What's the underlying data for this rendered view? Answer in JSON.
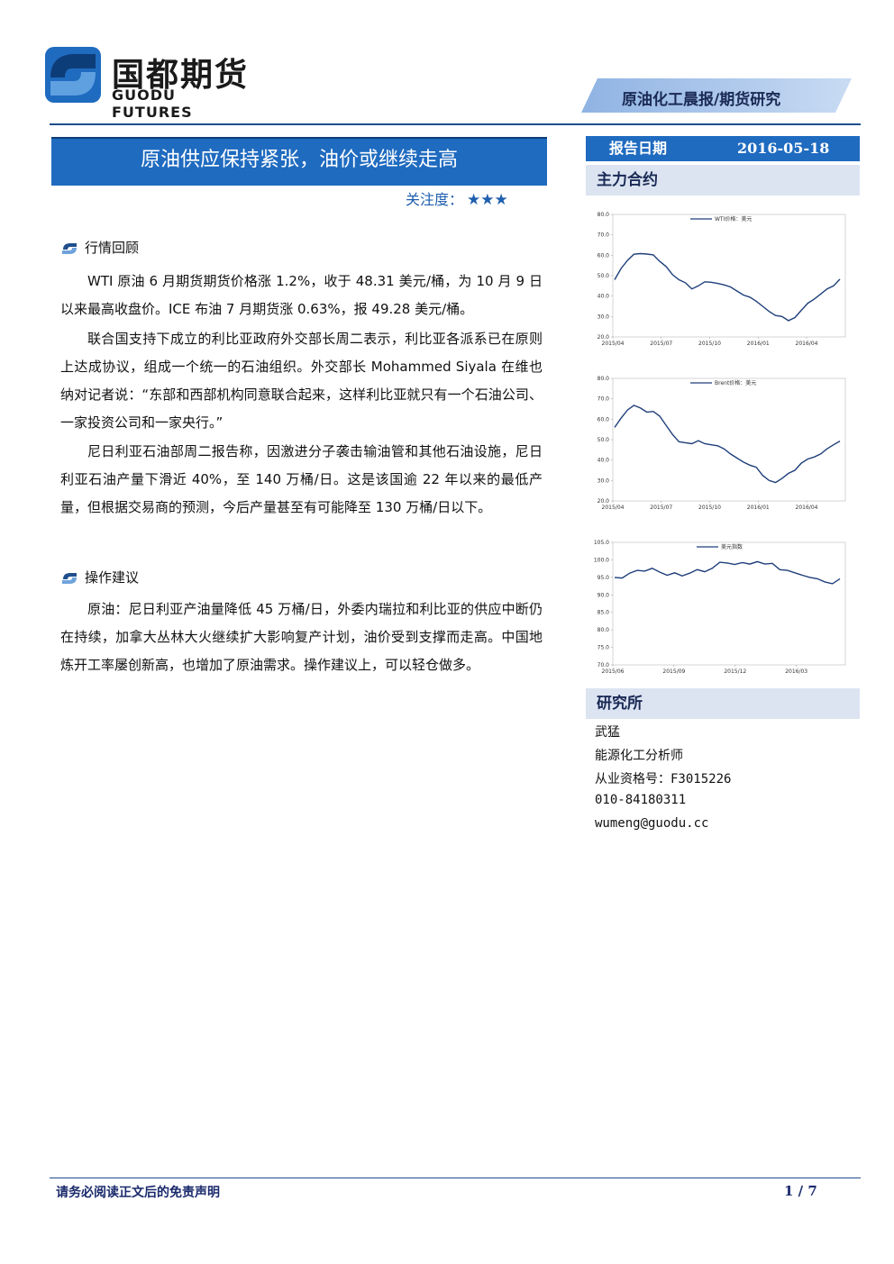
{
  "header": {
    "logo_cn": "国都期货",
    "logo_en": "GUODU FUTURES",
    "report_type": "原油化工晨报/期货研究"
  },
  "title": "原油供应保持紧张，油价或继续走高",
  "focus": {
    "label": "关注度：",
    "stars": 3
  },
  "sections": [
    {
      "heading": "行情回顾",
      "paragraphs": [
        "WTI 原油 6 月期货期货价格涨 1.2%，收于 48.31 美元/桶，为 10 月 9 日以来最高收盘价。ICE 布油 7 月期货涨 0.63%，报 49.28 美元/桶。",
        "联合国支持下成立的利比亚政府外交部长周二表示，利比亚各派系已在原则上达成协议，组成一个统一的石油组织。外交部长 Mohammed Siyala 在维也纳对记者说：“东部和西部机构同意联合起来，这样利比亚就只有一个石油公司、一家投资公司和一家央行。”",
        "尼日利亚石油部周二报告称，因激进分子袭击输油管和其他石油设施，尼日利亚石油产量下滑近 40%，至 140 万桶/日。这是该国逾 22 年以来的最低产量，但根据交易商的预测，今后产量甚至有可能降至 130 万桶/日以下。"
      ]
    },
    {
      "heading": "操作建议",
      "paragraphs": [
        "原油：尼日利亚产油量降低 45 万桶/日，外委内瑞拉和利比亚的供应中断仍在持续，加拿大丛林大火继续扩大影响复产计划，油价受到支撑而走高。中国地炼开工率屡创新高，也增加了原油需求。操作建议上，可以轻仓做多。"
      ]
    }
  ],
  "sidebar": {
    "date_label": "报告日期",
    "date_value": "2016-05-18",
    "contracts_heading": "主力合约",
    "research_heading": "研究所",
    "analyst": {
      "name": "武猛",
      "role": "能源化工分析师",
      "license": "从业资格号：F3015226",
      "phone": "010-84180311",
      "email": "wumeng@guodu.cc"
    }
  },
  "chart_data": [
    {
      "type": "line",
      "series": [
        {
          "name": "WTI价格：美元",
          "values": [
            48.0,
            53.5,
            57.5,
            60.5,
            60.8,
            60.6,
            60.2,
            57.0,
            54.5,
            50.5,
            48.0,
            46.5,
            43.5,
            45.0,
            47.0,
            46.8,
            46.2,
            45.5,
            44.5,
            42.5,
            40.5,
            39.5,
            37.5,
            35.0,
            32.5,
            30.5,
            30.0,
            28.0,
            29.5,
            33.0,
            36.5,
            38.5,
            41.0,
            43.5,
            45.0,
            48.3
          ]
        }
      ],
      "x_ticks": [
        "2015/04",
        "2015/07",
        "2015/10",
        "2016/01",
        "2016/04"
      ],
      "y_ticks": [
        "20.0",
        "30.0",
        "40.0",
        "50.0",
        "60.0",
        "70.0",
        "80.0"
      ],
      "ylim": [
        20,
        80
      ]
    },
    {
      "type": "line",
      "series": [
        {
          "name": "Brent价格：美元",
          "values": [
            56.0,
            60.5,
            64.5,
            66.8,
            65.5,
            63.5,
            63.8,
            61.5,
            57.0,
            52.5,
            49.0,
            48.5,
            48.0,
            49.5,
            48.0,
            47.5,
            47.0,
            45.5,
            43.0,
            41.0,
            39.0,
            37.5,
            36.5,
            32.5,
            30.0,
            29.0,
            31.0,
            33.5,
            35.0,
            38.5,
            40.5,
            41.5,
            43.0,
            45.5,
            47.5,
            49.3
          ]
        }
      ],
      "x_ticks": [
        "2015/04",
        "2015/07",
        "2015/10",
        "2016/01",
        "2016/04"
      ],
      "y_ticks": [
        "20.0",
        "30.0",
        "40.0",
        "50.0",
        "60.0",
        "70.0",
        "80.0"
      ],
      "ylim": [
        20,
        80
      ]
    },
    {
      "type": "line",
      "series": [
        {
          "name": "美元指数",
          "values": [
            95.0,
            94.8,
            96.2,
            97.0,
            96.8,
            97.6,
            96.5,
            95.6,
            96.3,
            95.4,
            96.2,
            97.2,
            96.6,
            97.6,
            99.3,
            99.1,
            98.7,
            99.2,
            98.8,
            99.5,
            98.8,
            99.0,
            97.2,
            97.0,
            96.3,
            95.6,
            95.0,
            94.6,
            93.7,
            93.2,
            94.6
          ]
        }
      ],
      "x_ticks": [
        "2015/06",
        "2015/09",
        "2015/12",
        "2016/03"
      ],
      "y_ticks": [
        "70.0",
        "75.0",
        "80.0",
        "85.0",
        "90.0",
        "95.0",
        "100.0",
        "105.0"
      ],
      "ylim": [
        70,
        105
      ]
    }
  ],
  "footer": {
    "disclaimer": "请务必阅读正文后的免责声明",
    "page": "1 / 7"
  }
}
